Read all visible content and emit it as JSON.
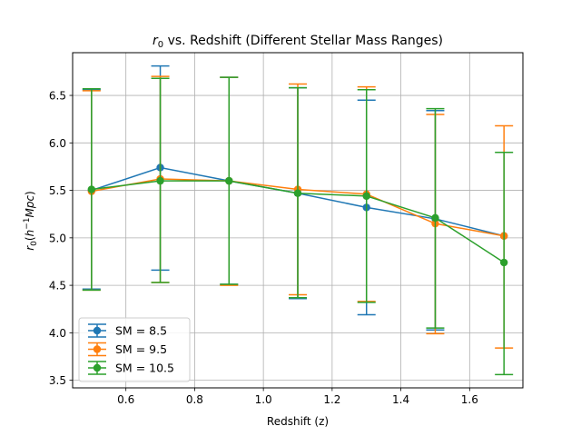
{
  "chart_data": {
    "type": "line",
    "title": "r₀ vs. Redshift (Different Stellar Mass Ranges)",
    "title_math": "r",
    "title_sub": "0",
    "title_rest": " vs. Redshift (Different Stellar Mass Ranges)",
    "xlabel": "Redshift (z)",
    "ylabel": "r₀(h⁻¹Mpc)",
    "xlim": [
      0.445,
      1.755
    ],
    "ylim": [
      3.42,
      6.95
    ],
    "xticks": [
      0.6,
      0.8,
      1.0,
      1.2,
      1.4,
      1.6
    ],
    "xtick_labels": [
      "0.6",
      "0.8",
      "1.0",
      "1.2",
      "1.4",
      "1.6"
    ],
    "yticks": [
      3.5,
      4.0,
      4.5,
      5.0,
      5.5,
      6.0,
      6.5
    ],
    "ytick_labels": [
      "3.5",
      "4.0",
      "4.5",
      "5.0",
      "5.5",
      "6.0",
      "6.5"
    ],
    "grid": true,
    "legend_position": "lower-left",
    "x": [
      0.5,
      0.7,
      0.9,
      1.1,
      1.3,
      1.5,
      1.7
    ],
    "series": [
      {
        "name": "SM = 8.5",
        "color": "#1f77b4",
        "values": [
          5.5,
          5.74,
          5.6,
          5.47,
          5.32,
          5.2,
          5.02
        ],
        "err_low": [
          4.46,
          4.66,
          4.51,
          4.36,
          4.19,
          4.03,
          5.02
        ],
        "err_high": [
          6.56,
          6.81,
          6.69,
          6.58,
          6.45,
          6.34,
          5.02
        ]
      },
      {
        "name": "SM = 9.5",
        "color": "#ff7f0e",
        "values": [
          5.49,
          5.62,
          5.6,
          5.51,
          5.46,
          5.15,
          5.02
        ],
        "err_low": [
          4.45,
          4.53,
          4.5,
          4.4,
          4.33,
          3.99,
          3.84
        ],
        "err_high": [
          6.55,
          6.7,
          6.69,
          6.62,
          6.59,
          6.3,
          6.18
        ]
      },
      {
        "name": "SM = 10.5",
        "color": "#2ca02c",
        "values": [
          5.51,
          5.6,
          5.6,
          5.47,
          5.44,
          5.21,
          4.74
        ],
        "err_low": [
          4.45,
          4.53,
          4.51,
          4.37,
          4.32,
          4.05,
          3.56
        ],
        "err_high": [
          6.57,
          6.68,
          6.69,
          6.58,
          6.56,
          6.36,
          5.9
        ]
      }
    ]
  }
}
